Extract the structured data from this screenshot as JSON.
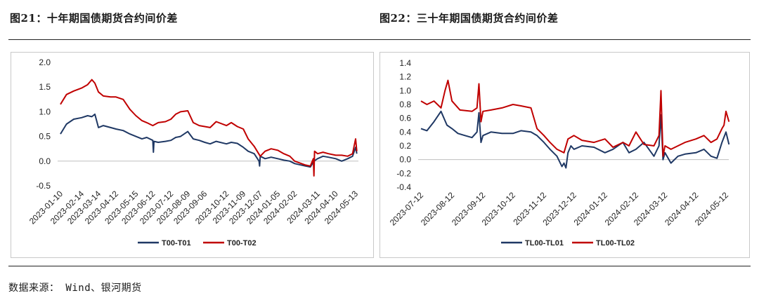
{
  "figures": {
    "left_title": "图21：十年期国债期货合约间价差",
    "right_title": "图22：三十年期国债期货合约间价差"
  },
  "source_note": "数据来源： Wind、银河期货",
  "colors": {
    "navy": "#1f3864",
    "red": "#c00000",
    "axis": "#bfbfbf"
  },
  "chart_data": [
    {
      "type": "line",
      "title": "",
      "xlabel": "",
      "ylabel": "",
      "ylim": [
        -0.5,
        2.0
      ],
      "yticks": [
        "2.0",
        "1.5",
        "1.0",
        "0.5",
        "0.0",
        "-0.5"
      ],
      "ytick_values": [
        2.0,
        1.5,
        1.0,
        0.5,
        0.0,
        -0.5
      ],
      "x_tick_labels": [
        "2023-01-10",
        "2023-02-14",
        "2023-03-14",
        "2023-04-12",
        "2023-05-15",
        "2023-06-12",
        "2023-07-12",
        "2023-08-09",
        "2023-09-06",
        "2023-10-12",
        "2023-11-09",
        "2023-12-07",
        "2024-01-05",
        "2024-02-02",
        "2024-03-11",
        "2024-04-10",
        "2024-05-13"
      ],
      "legend_position": "bottom",
      "series": [
        {
          "name": "T00-T01",
          "color": "#1f3864",
          "x": [
            "2023-01-10",
            "2023-01-20",
            "2023-02-01",
            "2023-02-14",
            "2023-02-24",
            "2023-03-03",
            "2023-03-08",
            "2023-03-14",
            "2023-03-22",
            "2023-04-03",
            "2023-04-12",
            "2023-04-24",
            "2023-05-05",
            "2023-05-15",
            "2023-05-25",
            "2023-06-02",
            "2023-06-12",
            "2023-06-13",
            "2023-06-14",
            "2023-06-21",
            "2023-07-03",
            "2023-07-12",
            "2023-07-20",
            "2023-07-28",
            "2023-08-09",
            "2023-08-18",
            "2023-08-28",
            "2023-09-06",
            "2023-09-15",
            "2023-09-25",
            "2023-10-12",
            "2023-10-20",
            "2023-10-30",
            "2023-11-09",
            "2023-11-17",
            "2023-11-27",
            "2023-12-05",
            "2023-12-06",
            "2023-12-07",
            "2023-12-15",
            "2023-12-25",
            "2024-01-05",
            "2024-01-15",
            "2024-01-25",
            "2024-02-02",
            "2024-02-20",
            "2024-02-28",
            "2024-03-05",
            "2024-03-11",
            "2024-03-20",
            "2024-03-29",
            "2024-04-10",
            "2024-04-20",
            "2024-04-30",
            "2024-05-08",
            "2024-05-13",
            "2024-05-15"
          ],
          "y": [
            0.55,
            0.75,
            0.85,
            0.88,
            0.92,
            0.9,
            0.95,
            0.68,
            0.72,
            0.68,
            0.65,
            0.62,
            0.55,
            0.5,
            0.45,
            0.48,
            0.42,
            0.18,
            0.4,
            0.38,
            0.4,
            0.42,
            0.48,
            0.5,
            0.6,
            0.45,
            0.42,
            0.38,
            0.35,
            0.4,
            0.35,
            0.38,
            0.36,
            0.28,
            0.2,
            0.15,
            0.0,
            -0.1,
            0.1,
            0.05,
            0.08,
            0.05,
            0.02,
            0.0,
            -0.05,
            -0.1,
            -0.12,
            0.0,
            0.05,
            0.1,
            0.08,
            0.05,
            0.0,
            0.05,
            0.1,
            0.28,
            0.15
          ]
        },
        {
          "name": "T00-T02",
          "color": "#c00000",
          "x": [
            "2023-01-10",
            "2023-01-20",
            "2023-02-01",
            "2023-02-14",
            "2023-02-24",
            "2023-03-03",
            "2023-03-08",
            "2023-03-14",
            "2023-03-22",
            "2023-04-03",
            "2023-04-12",
            "2023-04-24",
            "2023-05-05",
            "2023-05-15",
            "2023-05-25",
            "2023-06-02",
            "2023-06-12",
            "2023-06-21",
            "2023-07-03",
            "2023-07-12",
            "2023-07-20",
            "2023-07-28",
            "2023-08-09",
            "2023-08-18",
            "2023-08-28",
            "2023-09-06",
            "2023-09-15",
            "2023-09-25",
            "2023-10-12",
            "2023-10-20",
            "2023-10-30",
            "2023-11-09",
            "2023-11-17",
            "2023-11-27",
            "2023-12-07",
            "2023-12-15",
            "2023-12-25",
            "2024-01-05",
            "2024-01-15",
            "2024-01-25",
            "2024-02-02",
            "2024-02-20",
            "2024-02-28",
            "2024-03-04",
            "2024-03-05",
            "2024-03-06",
            "2024-03-11",
            "2024-03-20",
            "2024-03-29",
            "2024-04-10",
            "2024-04-20",
            "2024-04-30",
            "2024-05-08",
            "2024-05-13",
            "2024-05-15"
          ],
          "y": [
            1.15,
            1.35,
            1.42,
            1.48,
            1.55,
            1.65,
            1.58,
            1.4,
            1.32,
            1.3,
            1.3,
            1.25,
            1.05,
            0.92,
            0.82,
            0.78,
            0.72,
            0.78,
            0.8,
            0.85,
            0.95,
            1.0,
            1.02,
            0.78,
            0.72,
            0.7,
            0.68,
            0.8,
            0.72,
            0.78,
            0.7,
            0.65,
            0.45,
            0.3,
            0.1,
            0.2,
            0.25,
            0.22,
            0.15,
            0.1,
            0.0,
            -0.08,
            -0.1,
            0.05,
            -0.3,
            0.2,
            0.15,
            0.18,
            0.15,
            0.12,
            0.12,
            0.1,
            0.15,
            0.45,
            0.2
          ]
        }
      ]
    },
    {
      "type": "line",
      "title": "",
      "xlabel": "",
      "ylabel": "",
      "ylim": [
        -0.4,
        1.4
      ],
      "yticks": [
        "1.4",
        "1.2",
        "1.0",
        "0.8",
        "0.6",
        "0.4",
        "0.2",
        "0.0",
        "-0.2",
        "-0.4"
      ],
      "ytick_values": [
        1.4,
        1.2,
        1.0,
        0.8,
        0.6,
        0.4,
        0.2,
        0.0,
        -0.2,
        -0.4
      ],
      "x_tick_labels": [
        "2023-07-12",
        "2023-08-12",
        "2023-09-12",
        "2023-10-12",
        "2023-11-12",
        "2023-12-12",
        "2024-01-12",
        "2024-02-12",
        "2024-03-12",
        "2024-04-12",
        "2024-05-12"
      ],
      "legend_position": "bottom",
      "series": [
        {
          "name": "TL00-TL01",
          "color": "#1f3864",
          "x": [
            "2023-07-12",
            "2023-07-18",
            "2023-07-25",
            "2023-08-01",
            "2023-08-07",
            "2023-08-12",
            "2023-08-18",
            "2023-08-25",
            "2023-09-01",
            "2023-09-06",
            "2023-09-08",
            "2023-09-10",
            "2023-09-12",
            "2023-09-20",
            "2023-10-01",
            "2023-10-12",
            "2023-10-20",
            "2023-10-30",
            "2023-11-05",
            "2023-11-12",
            "2023-11-18",
            "2023-11-25",
            "2023-11-30",
            "2023-12-02",
            "2023-12-04",
            "2023-12-06",
            "2023-12-09",
            "2023-12-12",
            "2023-12-20",
            "2024-01-01",
            "2024-01-12",
            "2024-01-20",
            "2024-01-30",
            "2024-02-05",
            "2024-02-12",
            "2024-02-20",
            "2024-03-01",
            "2024-03-06",
            "2024-03-08",
            "2024-03-10",
            "2024-03-12",
            "2024-03-18",
            "2024-03-25",
            "2024-04-01",
            "2024-04-12",
            "2024-04-20",
            "2024-04-27",
            "2024-05-03",
            "2024-05-08",
            "2024-05-12",
            "2024-05-15"
          ],
          "y": [
            0.45,
            0.42,
            0.55,
            0.7,
            0.5,
            0.45,
            0.38,
            0.35,
            0.32,
            0.4,
            0.68,
            0.25,
            0.35,
            0.4,
            0.38,
            0.38,
            0.42,
            0.4,
            0.35,
            0.25,
            0.15,
            0.05,
            -0.1,
            -0.05,
            -0.12,
            0.1,
            0.2,
            0.15,
            0.2,
            0.18,
            0.1,
            0.15,
            0.25,
            0.1,
            0.15,
            0.25,
            0.05,
            0.2,
            0.65,
            0.0,
            0.1,
            -0.05,
            0.05,
            0.08,
            0.1,
            0.15,
            0.05,
            0.02,
            0.25,
            0.4,
            0.22
          ]
        },
        {
          "name": "TL00-TL02",
          "color": "#c00000",
          "x": [
            "2023-07-12",
            "2023-07-18",
            "2023-07-25",
            "2023-08-01",
            "2023-08-05",
            "2023-08-08",
            "2023-08-12",
            "2023-08-20",
            "2023-09-01",
            "2023-09-06",
            "2023-09-08",
            "2023-09-10",
            "2023-09-12",
            "2023-09-20",
            "2023-10-01",
            "2023-10-12",
            "2023-10-20",
            "2023-10-30",
            "2023-11-05",
            "2023-11-12",
            "2023-11-18",
            "2023-11-25",
            "2023-12-02",
            "2023-12-06",
            "2023-12-12",
            "2023-12-20",
            "2024-01-01",
            "2024-01-12",
            "2024-01-20",
            "2024-01-30",
            "2024-02-05",
            "2024-02-12",
            "2024-02-20",
            "2024-03-01",
            "2024-03-06",
            "2024-03-08",
            "2024-03-10",
            "2024-03-12",
            "2024-03-18",
            "2024-03-25",
            "2024-04-01",
            "2024-04-12",
            "2024-04-20",
            "2024-04-27",
            "2024-05-03",
            "2024-05-08",
            "2024-05-10",
            "2024-05-12",
            "2024-05-15"
          ],
          "y": [
            0.85,
            0.8,
            0.85,
            0.75,
            1.0,
            1.15,
            0.85,
            0.72,
            0.7,
            0.75,
            1.1,
            0.55,
            0.7,
            0.72,
            0.75,
            0.8,
            0.78,
            0.75,
            0.45,
            0.35,
            0.25,
            0.15,
            0.1,
            0.3,
            0.35,
            0.28,
            0.25,
            0.3,
            0.18,
            0.25,
            0.2,
            0.4,
            0.22,
            0.2,
            0.35,
            1.0,
            0.05,
            0.2,
            0.15,
            0.2,
            0.25,
            0.3,
            0.35,
            0.25,
            0.3,
            0.45,
            0.5,
            0.7,
            0.55
          ]
        }
      ]
    }
  ]
}
